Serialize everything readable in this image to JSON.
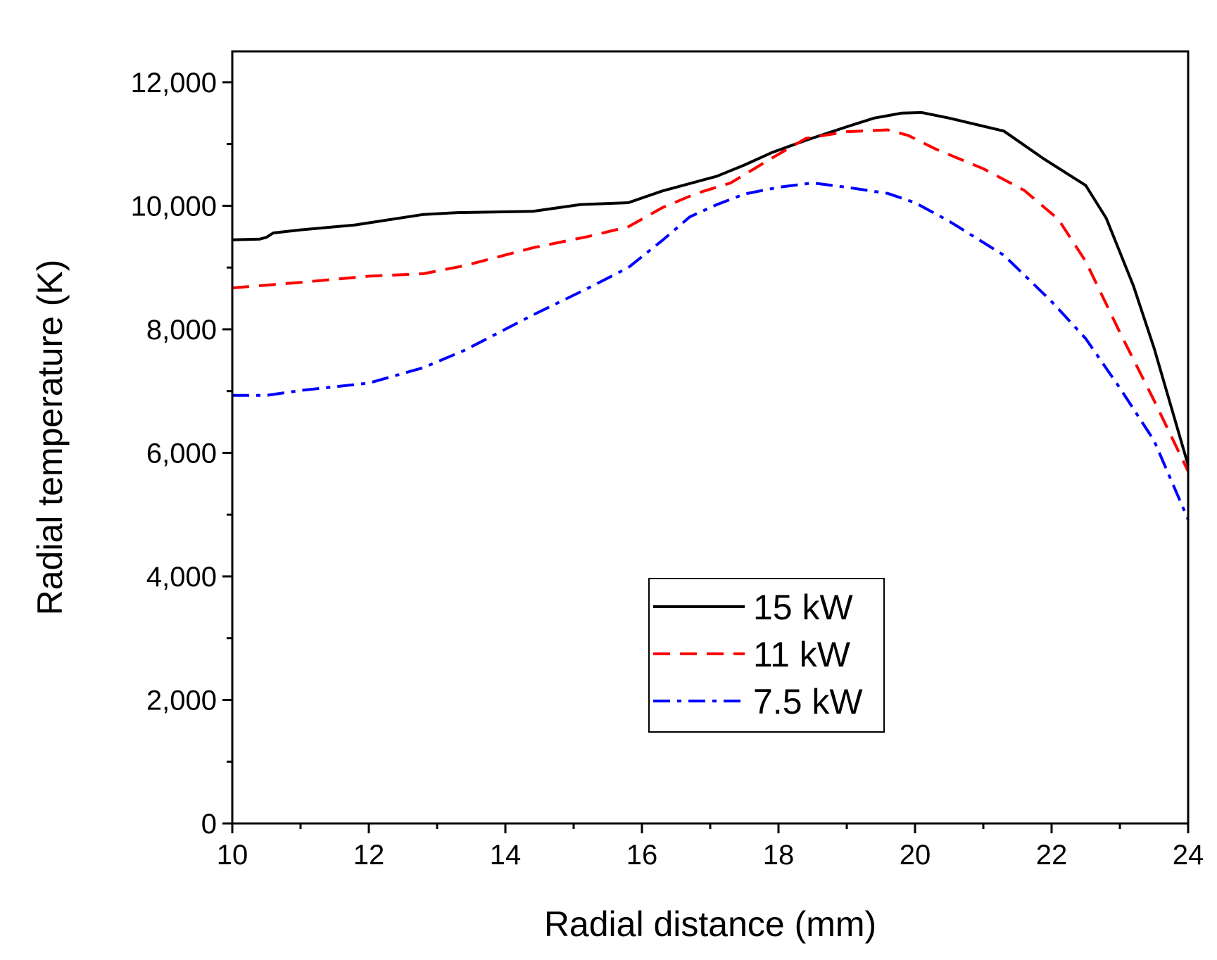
{
  "chart_data": {
    "type": "line",
    "xlabel": "Radial distance (mm)",
    "ylabel": "Radial temperature (K)",
    "xlim": [
      10,
      24
    ],
    "ylim": [
      0,
      12500
    ],
    "xticks": [
      10,
      12,
      14,
      16,
      18,
      20,
      22,
      24
    ],
    "xtick_labels": [
      "10",
      "12",
      "14",
      "16",
      "18",
      "20",
      "22",
      "24"
    ],
    "yticks": [
      0,
      2000,
      4000,
      6000,
      8000,
      10000,
      12000
    ],
    "ytick_labels": [
      "0",
      "2,000",
      "4,000",
      "6,000",
      "8,000",
      "10,000",
      "12,000"
    ],
    "grid": false,
    "legend_position": "bottom-center",
    "series": [
      {
        "name": "15 kW",
        "color": "#000000",
        "dash": "solid",
        "x": [
          10,
          10.4,
          10.5,
          10.6,
          11,
          11.8,
          12.8,
          13.3,
          14.4,
          15.1,
          15.8,
          16.3,
          16.7,
          17.1,
          17.5,
          17.9,
          18.4,
          19,
          19.4,
          19.8,
          20.1,
          20.5,
          21.3,
          21.9,
          22.5,
          22.8,
          23.2,
          23.5,
          24
        ],
        "values": [
          9450,
          9460,
          9490,
          9560,
          9610,
          9690,
          9860,
          9890,
          9910,
          10020,
          10050,
          10240,
          10360,
          10480,
          10660,
          10860,
          11060,
          11280,
          11420,
          11500,
          11510,
          11420,
          11210,
          10750,
          10330,
          9800,
          8700,
          7700,
          5800
        ]
      },
      {
        "name": "11 kW",
        "color": "#ff0000",
        "dash": "dashed",
        "x": [
          10,
          11,
          12,
          12.8,
          13.4,
          14.4,
          15.2,
          15.8,
          16.3,
          16.8,
          17.3,
          17.9,
          18.4,
          19,
          19.6,
          19.9,
          20.3,
          21,
          21.6,
          22.1,
          22.5,
          23,
          23.5,
          24
        ],
        "values": [
          8670,
          8760,
          8860,
          8900,
          9030,
          9320,
          9500,
          9660,
          9970,
          10200,
          10370,
          10770,
          11090,
          11200,
          11230,
          11140,
          10920,
          10600,
          10250,
          9780,
          9100,
          7950,
          6850,
          5700
        ]
      },
      {
        "name": "7.5 kW",
        "color": "#0000ff",
        "dash": "dashdot",
        "x": [
          10,
          10.5,
          11,
          12,
          12.8,
          13.4,
          14.4,
          15.2,
          15.8,
          16.3,
          16.7,
          17.1,
          17.5,
          18,
          18.5,
          19,
          19.6,
          20,
          20.5,
          21.3,
          22,
          22.5,
          23,
          23.5,
          24
        ],
        "values": [
          6930,
          6930,
          7010,
          7130,
          7380,
          7660,
          8230,
          8660,
          9000,
          9440,
          9820,
          10020,
          10190,
          10300,
          10370,
          10300,
          10200,
          10050,
          9750,
          9200,
          8450,
          7850,
          7050,
          6200,
          4920
        ]
      }
    ]
  }
}
